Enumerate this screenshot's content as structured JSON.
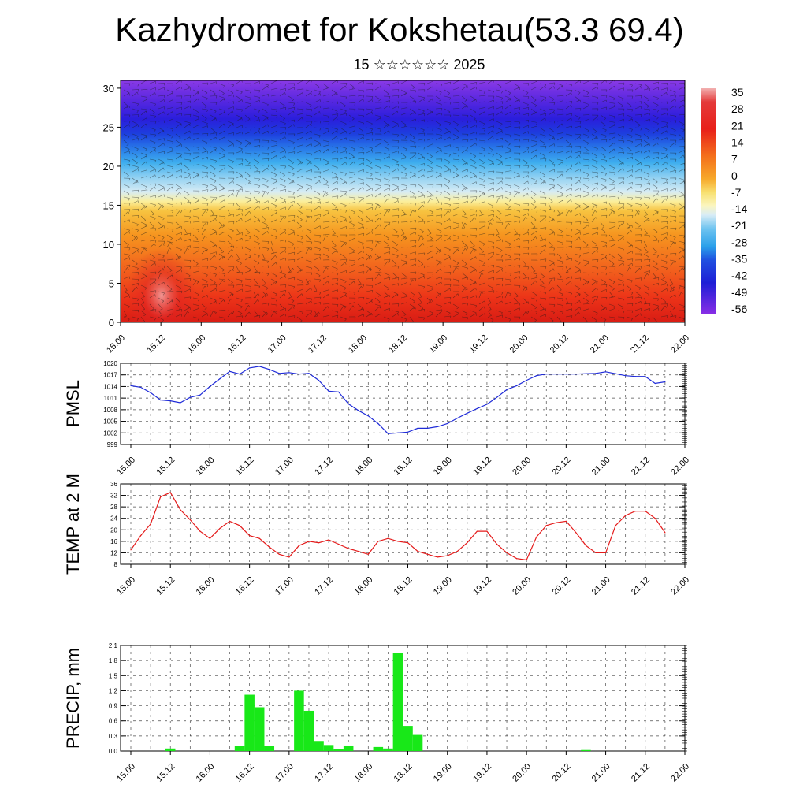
{
  "title": "Kazhydromet for Kokshetau(53.3 69.4)",
  "subtitle": "15 ☆☆☆☆☆☆ 2025",
  "chart_data": [
    {
      "type": "heatmap",
      "title": "",
      "x_ticks": [
        "15.00",
        "15.12",
        "16.00",
        "16.12",
        "17.00",
        "17.12",
        "18.00",
        "18.12",
        "19.00",
        "19.12",
        "20.00",
        "20.12",
        "21.00",
        "21.12",
        "22.00"
      ],
      "y_ticks": [
        0,
        5,
        10,
        15,
        20,
        25,
        30
      ],
      "ylim": [
        0,
        31
      ],
      "colorbar_labels": [
        "35",
        "28",
        "21",
        "14",
        "7",
        "0",
        "-7",
        "-14",
        "-21",
        "-28",
        "-35",
        "-42",
        "-49",
        "-56"
      ],
      "wind_barbs": true,
      "colors": {
        "warm": "#e8201a",
        "mid": "#f6c340",
        "cold": "#2020d0"
      }
    },
    {
      "type": "line",
      "ylabel": "PMSL",
      "x_ticks": [
        "15.00",
        "15.12",
        "16.00",
        "16.12",
        "17.00",
        "17.12",
        "18.00",
        "18.12",
        "19.00",
        "19.12",
        "20.00",
        "20.12",
        "21.00",
        "21.12",
        "22.00"
      ],
      "y_ticks": [
        1020,
        1017,
        1014,
        1011,
        1008,
        1005,
        1002,
        999
      ],
      "ylim": [
        999,
        1020
      ],
      "color": "#1f2bd8",
      "x": [
        0,
        3,
        6,
        9,
        12,
        15,
        18,
        21,
        24,
        27,
        30,
        33,
        36,
        39,
        42,
        45,
        48,
        51,
        54,
        57,
        60,
        63,
        66,
        69,
        72,
        75,
        78,
        81,
        84,
        87,
        90,
        93,
        96,
        99,
        102,
        105,
        108,
        111,
        114,
        117,
        120,
        123,
        126,
        129,
        132,
        135,
        138,
        141,
        144,
        147,
        150,
        153,
        156,
        159,
        162
      ],
      "values": [
        1014.2,
        1013.8,
        1012.4,
        1010.5,
        1010.3,
        1009.8,
        1011.2,
        1011.8,
        1014.0,
        1016.0,
        1017.9,
        1017.2,
        1018.8,
        1019.2,
        1018.4,
        1017.4,
        1017.6,
        1017.2,
        1017.4,
        1015.6,
        1012.8,
        1012.6,
        1009.5,
        1007.8,
        1006.4,
        1004.4,
        1001.8,
        1002.0,
        1002.2,
        1003.2,
        1003.2,
        1003.6,
        1004.4,
        1005.8,
        1007.1,
        1008.3,
        1009.4,
        1011.2,
        1013.2,
        1014.2,
        1015.6,
        1016.8,
        1017.2,
        1017.2,
        1017.2,
        1017.2,
        1017.3,
        1017.4,
        1017.8,
        1017.3,
        1016.8,
        1016.6,
        1016.6,
        1014.8,
        1015.2
      ]
    },
    {
      "type": "line",
      "ylabel": "TEMP at 2 M",
      "x_ticks": [
        "15.00",
        "15.12",
        "16.00",
        "16.12",
        "17.00",
        "17.12",
        "18.00",
        "18.12",
        "19.00",
        "19.12",
        "20.00",
        "20.12",
        "21.00",
        "21.12",
        "22.00"
      ],
      "y_ticks": [
        36,
        32,
        28,
        24,
        20,
        16,
        12,
        8
      ],
      "ylim": [
        8,
        36
      ],
      "color": "#e41a1a",
      "x": [
        0,
        3,
        6,
        9,
        12,
        15,
        18,
        21,
        24,
        27,
        30,
        33,
        36,
        39,
        42,
        45,
        48,
        51,
        54,
        57,
        60,
        63,
        66,
        69,
        72,
        75,
        78,
        81,
        84,
        87,
        90,
        93,
        96,
        99,
        102,
        105,
        108,
        111,
        114,
        117,
        120,
        123,
        126,
        129,
        132,
        135,
        138,
        141,
        144,
        147,
        150,
        153,
        156,
        159,
        162
      ],
      "values": [
        13.0,
        18.0,
        22.0,
        31.5,
        33.0,
        27.0,
        23.5,
        19.5,
        17.0,
        20.5,
        23.0,
        21.5,
        18.0,
        17.0,
        14.0,
        11.5,
        10.5,
        14.5,
        16.0,
        15.5,
        16.5,
        15.0,
        13.5,
        12.5,
        11.5,
        16.0,
        17.0,
        16.0,
        15.5,
        12.5,
        11.5,
        10.5,
        11.0,
        12.5,
        15.5,
        19.5,
        19.5,
        15.0,
        12.0,
        10.0,
        9.5,
        17.5,
        21.5,
        22.5,
        23.0,
        19.0,
        14.5,
        12.0,
        12.0,
        21.5,
        25.0,
        26.5,
        26.5,
        24.0,
        19.0
      ]
    },
    {
      "type": "bar",
      "ylabel": "PRECIP, mm",
      "x_ticks": [
        "15.00",
        "15.12",
        "16.00",
        "16.12",
        "17.00",
        "17.12",
        "18.00",
        "18.12",
        "19.00",
        "19.12",
        "20.00",
        "20.12",
        "21.00",
        "21.12",
        "22.00"
      ],
      "y_ticks": [
        "2.1",
        "1.8",
        "1.5",
        "1.2",
        "0.9",
        "0.6",
        "0.3",
        "0.0"
      ],
      "ylim": [
        0,
        2.1
      ],
      "color": "#18e818",
      "x": [
        12,
        33,
        36,
        39,
        42,
        51,
        54,
        57,
        60,
        63,
        66,
        75,
        78,
        81,
        84,
        87,
        138
      ],
      "values": [
        0.05,
        0.1,
        1.12,
        0.87,
        0.1,
        1.2,
        0.8,
        0.2,
        0.12,
        0.04,
        0.11,
        0.08,
        0.05,
        1.95,
        0.5,
        0.32,
        0.02
      ]
    }
  ]
}
